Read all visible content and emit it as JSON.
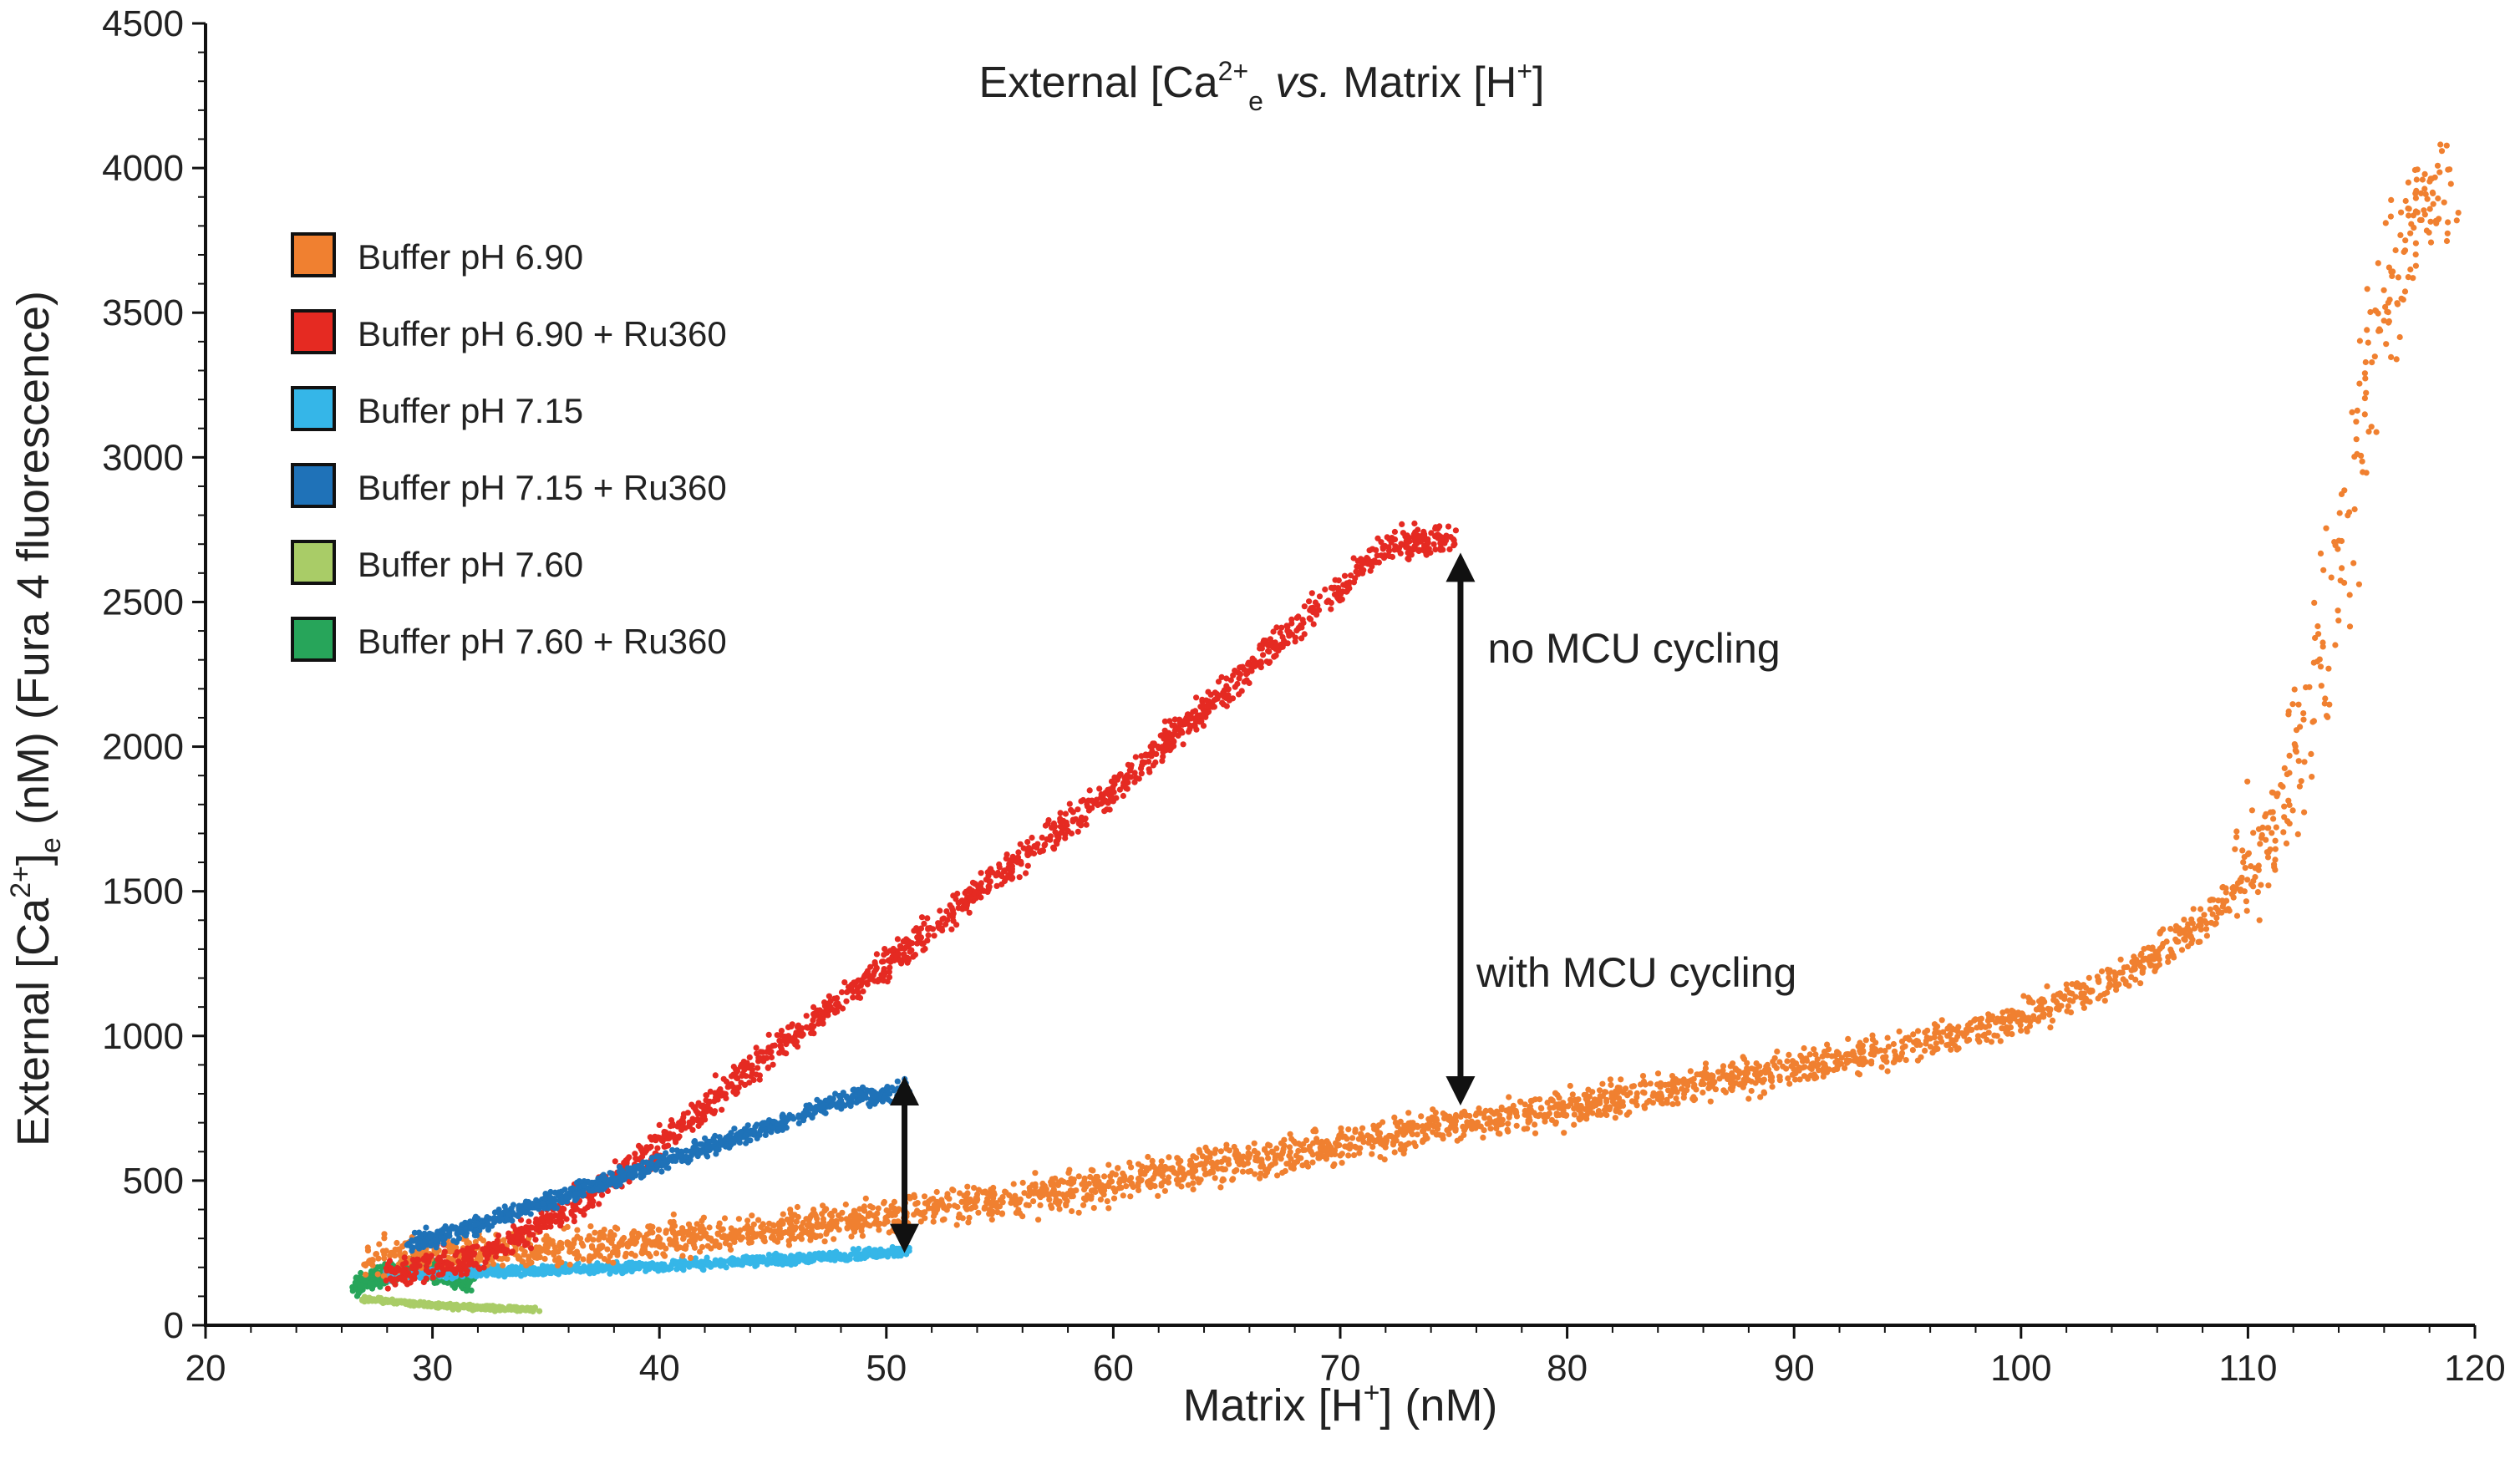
{
  "chart_data": {
    "type": "scatter",
    "title": {
      "prefix": "External [Ca",
      "sup": "2+",
      "sub": "e",
      "italic": " vs.",
      "mid": " Matrix [H",
      "sup2": "+",
      "suffix": "]"
    },
    "xlabel": {
      "prefix": "Matrix [H",
      "sup": "+",
      "suffix": "] (nM)"
    },
    "ylabel": {
      "prefix": "External [Ca",
      "sup": "2+",
      "mid": "]",
      "sub": "e",
      "suffix": " (nM) (Fura 4 fluorescence)"
    },
    "xlim": [
      20,
      120
    ],
    "ylim": [
      0,
      4500
    ],
    "xticks": [
      "20",
      "30",
      "40",
      "50",
      "60",
      "70",
      "80",
      "90",
      "100",
      "110",
      "120"
    ],
    "yticks": [
      "0",
      "500",
      "1000",
      "1500",
      "2000",
      "2500",
      "3000",
      "3500",
      "4000",
      "4500"
    ],
    "grid": false,
    "legend_position": "top-left",
    "series": [
      {
        "name": "Buffer pH 6.90",
        "color": "#f08030",
        "trend_x": [
          27,
          30,
          35,
          40,
          45,
          50,
          55,
          60,
          65,
          70,
          75,
          80,
          85,
          90,
          95,
          100,
          103,
          106,
          108,
          110,
          111,
          112,
          113,
          114,
          115,
          116,
          117,
          118,
          119
        ],
        "trend_y": [
          230,
          250,
          260,
          290,
          330,
          380,
          430,
          490,
          560,
          620,
          690,
          750,
          820,
          890,
          960,
          1060,
          1150,
          1280,
          1400,
          1550,
          1700,
          1900,
          2150,
          2600,
          3100,
          3500,
          3800,
          3900,
          3950
        ],
        "spread": 90
      },
      {
        "name": "Buffer pH 6.90 + Ru360",
        "color": "#e52a22",
        "trend_x": [
          28,
          32,
          36,
          40,
          45,
          50,
          55,
          60,
          65,
          70,
          72,
          75
        ],
        "trend_y": [
          180,
          230,
          400,
          620,
          950,
          1250,
          1560,
          1850,
          2200,
          2550,
          2700,
          2720
        ],
        "spread": 80
      },
      {
        "name": "Buffer pH 7.15",
        "color": "#35b6e8",
        "trend_x": [
          28,
          30,
          35,
          40,
          45,
          50,
          51
        ],
        "trend_y": [
          170,
          180,
          190,
          205,
          225,
          250,
          260
        ],
        "spread": 25
      },
      {
        "name": "Buffer pH 7.15 + Ru360",
        "color": "#1f72b8",
        "trend_x": [
          29,
          31,
          34,
          37,
          40,
          43,
          46,
          48,
          50,
          51
        ],
        "trend_y": [
          280,
          320,
          400,
          480,
          560,
          640,
          720,
          780,
          800,
          820
        ],
        "spread": 45
      },
      {
        "name": "Buffer pH 7.60",
        "color": "#a9cc67",
        "trend_x": [
          27,
          30,
          32,
          34.5
        ],
        "trend_y": [
          90,
          70,
          60,
          55
        ],
        "spread": 12
      },
      {
        "name": "Buffer pH 7.60 + Ru360",
        "color": "#27a55a",
        "trend_x": [
          26.5,
          28,
          29,
          30,
          31,
          31.8
        ],
        "trend_y": [
          130,
          180,
          200,
          190,
          170,
          160
        ],
        "spread": 55
      }
    ],
    "annotations": [
      {
        "text": "no MCU cycling",
        "x": 76.5,
        "y": 2290
      },
      {
        "text": "with MCU cycling",
        "x": 76,
        "y": 1170
      }
    ],
    "arrows": [
      {
        "x": 75.3,
        "y1": 2620,
        "y2": 810
      },
      {
        "x": 50.8,
        "y1": 810,
        "y2": 300
      }
    ]
  }
}
